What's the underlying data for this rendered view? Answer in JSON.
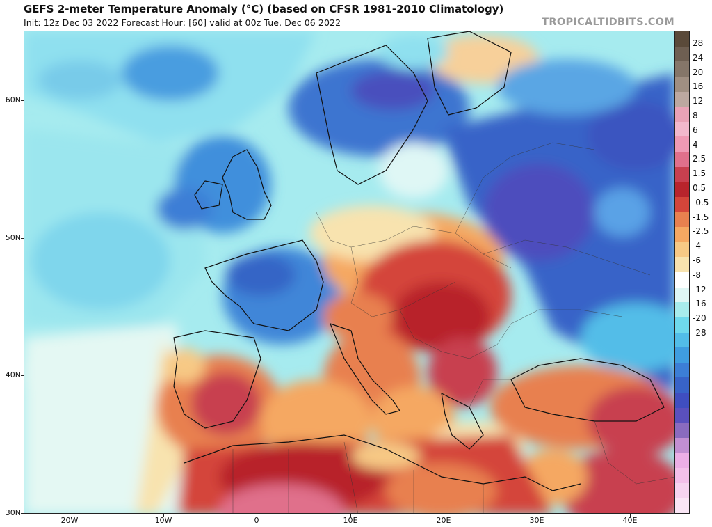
{
  "header": {
    "title": "GEFS 2-meter Temperature Anomaly (°C) (based on CFSR 1981-2010 Climatology)",
    "subtitle": "Init: 12z Dec 03 2022   Forecast Hour: [60]   valid at 00z Tue, Dec 06 2022",
    "brand": "TROPICALTIDBITS.COM"
  },
  "map": {
    "latitude_labels": [
      "60N",
      "50N",
      "40N",
      "30N"
    ],
    "longitude_labels": [
      "20W",
      "10W",
      "0",
      "10E",
      "20E",
      "30E",
      "40E"
    ]
  },
  "colorbar": {
    "labels": [
      "28",
      "24",
      "20",
      "16",
      "12",
      "8",
      "6",
      "4",
      "2.5",
      "1.5",
      "0.5",
      "-0.5",
      "-1.5",
      "-2.5",
      "-4",
      "-6",
      "-8",
      "-12",
      "-16",
      "-20",
      "-28"
    ],
    "colors": [
      "#5a4a3a",
      "#6e5f52",
      "#857669",
      "#a08f82",
      "#bca8a0",
      "#e9a2b6",
      "#f2b8cc",
      "#ef9ab4",
      "#e0708b",
      "#c8404f",
      "#b8242c",
      "#d4453a",
      "#e8804f",
      "#f5a862",
      "#f7c985",
      "#f8e3af",
      "#ffffff",
      "#dff7f5",
      "#a8ecec",
      "#6fd9ec",
      "#52bde8",
      "#3f9de0",
      "#3c7ed6",
      "#3863c8",
      "#3f4ec0",
      "#5a50bd",
      "#8a6bbf",
      "#c28fd2",
      "#ecaee6",
      "#f3c0ea",
      "#f6d4f0",
      "#fae6f6"
    ]
  }
}
